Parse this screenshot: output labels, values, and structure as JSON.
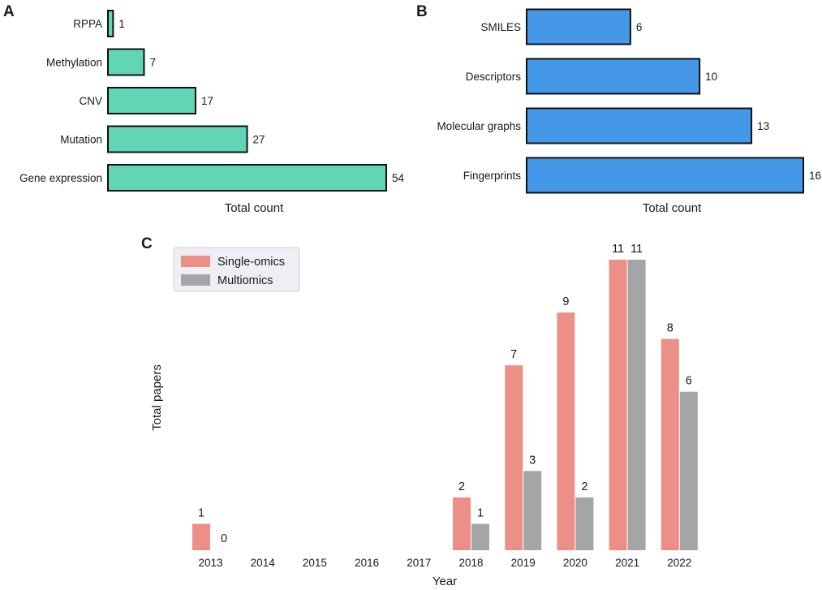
{
  "chart_data": [
    {
      "panel": "A",
      "type": "bar",
      "orientation": "horizontal",
      "categories": [
        "RPPA",
        "Methylation",
        "CNV",
        "Mutation",
        "Gene expression"
      ],
      "values": [
        1,
        7,
        17,
        27,
        54
      ],
      "xlabel": "Total count",
      "ylabel": "",
      "xlim": [
        0,
        54
      ],
      "color": "#62d6b4",
      "edge_color": "#111111",
      "grid": false
    },
    {
      "panel": "B",
      "type": "bar",
      "orientation": "horizontal",
      "categories": [
        "SMILES",
        "Descriptors",
        "Molecular graphs",
        "Fingerprints"
      ],
      "values": [
        6,
        10,
        13,
        16
      ],
      "xlabel": "Total count",
      "ylabel": "",
      "xlim": [
        0,
        16
      ],
      "color": "#4598e8",
      "edge_color": "#111111",
      "grid": false
    },
    {
      "panel": "C",
      "type": "bar",
      "orientation": "vertical",
      "categories": [
        "2013",
        "2014",
        "2015",
        "2016",
        "2017",
        "2018",
        "2019",
        "2020",
        "2021",
        "2022"
      ],
      "series": [
        {
          "name": "Single-omics",
          "color": "#ec8f86",
          "values": [
            1,
            null,
            null,
            null,
            null,
            2,
            7,
            9,
            11,
            8
          ]
        },
        {
          "name": "Multiomics",
          "color": "#a5a5a7",
          "values": [
            0,
            null,
            null,
            null,
            null,
            1,
            3,
            2,
            11,
            6
          ]
        }
      ],
      "xlabel": "Year",
      "ylabel": "Total papers",
      "ylim": [
        0,
        11
      ],
      "legend": {
        "placement": "top-left",
        "entries": [
          "Single-omics",
          "Multiomics"
        ]
      },
      "grid": false
    }
  ]
}
